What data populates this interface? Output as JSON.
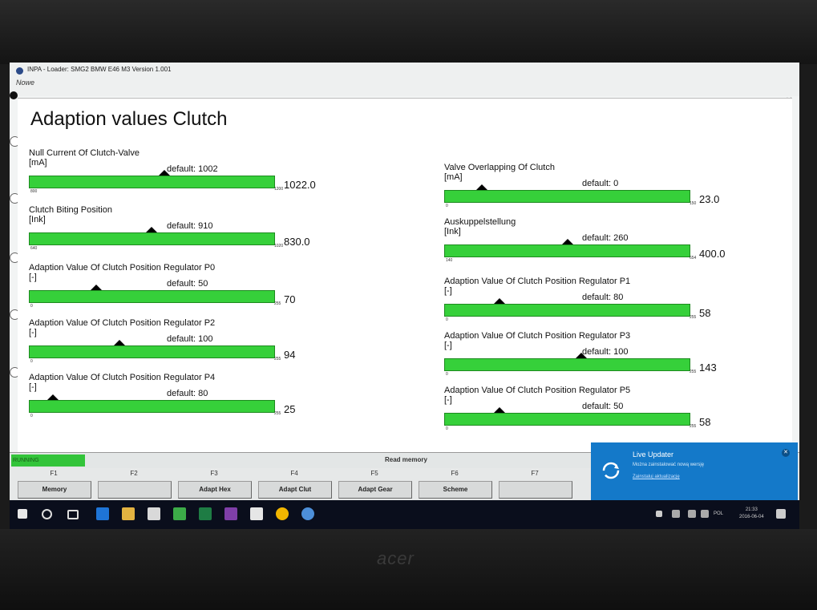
{
  "window": {
    "title": "INPA - Loader: SMG2 BMW E46 M3 Version 1.001",
    "subtitle": "Nowe"
  },
  "page": {
    "title": "Adaption values Clutch"
  },
  "params": [
    {
      "name": "Null Current Of Clutch-Valve",
      "unit": "[mA]",
      "default": "default: 1002",
      "value": "1022.0",
      "min": "800",
      "max": "1200",
      "fraction": 0.555
    },
    {
      "name": "Valve Overlapping Of Clutch",
      "unit": "[mA]",
      "default": "default: 0",
      "value": "23.0",
      "min": "0",
      "max": "150",
      "fraction": 0.153
    },
    {
      "name": "Clutch Biting Position",
      "unit": "[Ink]",
      "default": "default: 910",
      "value": "830.0",
      "min": "640",
      "max": "1020",
      "fraction": 0.5
    },
    {
      "name": "Auskuppelstellung",
      "unit": "[Ink]",
      "default": "default: 260",
      "value": "400.0",
      "min": "140",
      "max": "654",
      "fraction": 0.506
    },
    {
      "name": "Adaption Value Of Clutch Position Regulator P0",
      "unit": "[-]",
      "default": "default: 50",
      "value": "70",
      "min": "0",
      "max": "255",
      "fraction": 0.275
    },
    {
      "name": "Adaption Value Of Clutch Position Regulator P1",
      "unit": "[-]",
      "default": "default: 80",
      "value": "58",
      "min": "0",
      "max": "255",
      "fraction": 0.227
    },
    {
      "name": "Adaption Value Of Clutch Position Regulator P2",
      "unit": "[-]",
      "default": "default: 100",
      "value": "94",
      "min": "0",
      "max": "255",
      "fraction": 0.369
    },
    {
      "name": "Adaption Value Of Clutch Position Regulator P3",
      "unit": "[-]",
      "default": "default: 100",
      "value": "143",
      "min": "0",
      "max": "255",
      "fraction": 0.561
    },
    {
      "name": "Adaption Value Of Clutch Position Regulator P4",
      "unit": "[-]",
      "default": "default: 80",
      "value": "25",
      "min": "0",
      "max": "255",
      "fraction": 0.098
    },
    {
      "name": "Adaption Value Of Clutch Position Regulator P5",
      "unit": "[-]",
      "default": "default: 50",
      "value": "58",
      "min": "0",
      "max": "255",
      "fraction": 0.227
    }
  ],
  "status": {
    "state": "RUNNING",
    "message": "Read memory"
  },
  "fkeys": [
    {
      "key": "F1",
      "label": "Memory"
    },
    {
      "key": "F2",
      "label": ""
    },
    {
      "key": "F3",
      "label": "Adapt Hex"
    },
    {
      "key": "F4",
      "label": "Adapt Clut"
    },
    {
      "key": "F5",
      "label": "Adapt Gear"
    },
    {
      "key": "F6",
      "label": "Scheme"
    },
    {
      "key": "F7",
      "label": ""
    }
  ],
  "toast": {
    "title": "Live Updater",
    "body": "Można zainstalować nową wersję",
    "link": "Zainstaluj aktualizację"
  },
  "taskbar": {
    "lang": "POL",
    "time": "21:33",
    "date": "2016-06-04"
  },
  "laptop": {
    "brand": "acer"
  }
}
